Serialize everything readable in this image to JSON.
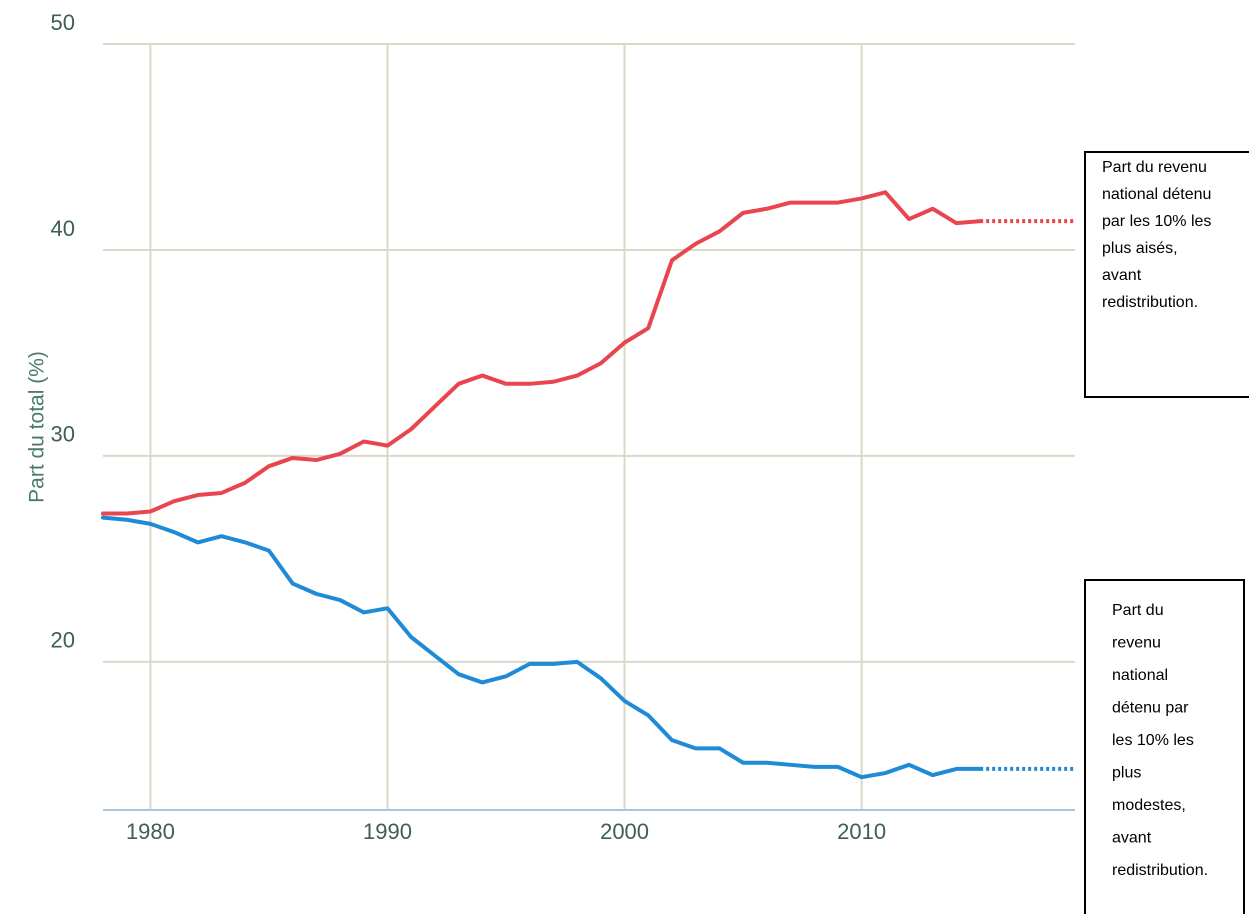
{
  "chart_data": {
    "type": "line",
    "y_label": "Part du total (%)",
    "x": [
      1978,
      1979,
      1980,
      1981,
      1982,
      1983,
      1984,
      1985,
      1986,
      1987,
      1988,
      1989,
      1990,
      1991,
      1992,
      1993,
      1994,
      1995,
      1996,
      1997,
      1998,
      1999,
      2000,
      2001,
      2002,
      2003,
      2004,
      2005,
      2006,
      2007,
      2008,
      2009,
      2010,
      2011,
      2012,
      2013,
      2014,
      2015
    ],
    "series": [
      {
        "color": "#e8454f",
        "values": [
          27.2,
          27.2,
          27.3,
          27.8,
          28.1,
          28.2,
          28.7,
          29.5,
          29.9,
          29.8,
          30.1,
          30.7,
          30.5,
          31.3,
          32.4,
          33.5,
          33.9,
          33.5,
          33.5,
          33.6,
          33.9,
          34.5,
          35.5,
          36.2,
          39.5,
          40.3,
          40.9,
          41.8,
          42.0,
          42.3,
          42.3,
          42.3,
          42.5,
          42.8,
          41.5,
          42.0,
          41.3,
          41.4
        ]
      },
      {
        "color": "#1f8ad6",
        "values": [
          27.0,
          26.9,
          26.7,
          26.3,
          25.8,
          26.1,
          25.8,
          25.4,
          23.8,
          23.3,
          23.0,
          22.4,
          22.6,
          21.2,
          20.3,
          19.4,
          19.0,
          19.3,
          19.9,
          19.9,
          20.0,
          19.2,
          18.1,
          17.4,
          16.2,
          15.8,
          15.8,
          15.1,
          15.1,
          15.0,
          14.9,
          14.9,
          14.4,
          14.6,
          15.0,
          14.5,
          14.8,
          14.8
        ]
      }
    ],
    "xlim": [
      1978,
      2019
    ],
    "xticks": [
      1980,
      1990,
      2000,
      2010
    ],
    "ylim": [
      13,
      50
    ],
    "yticks": [
      20,
      30,
      40,
      50
    ],
    "grid": true,
    "annotations": [
      {
        "lines": [
          "Part du revenu",
          "national détenu",
          "par  les 10% les",
          "plus aisés,",
          "avant",
          "redistribution."
        ]
      },
      {
        "lines": [
          "Part du",
          "revenu",
          "national",
          "détenu par",
          "les 10% les",
          "plus",
          "modestes,",
          "avant",
          "redistribution."
        ]
      }
    ]
  }
}
